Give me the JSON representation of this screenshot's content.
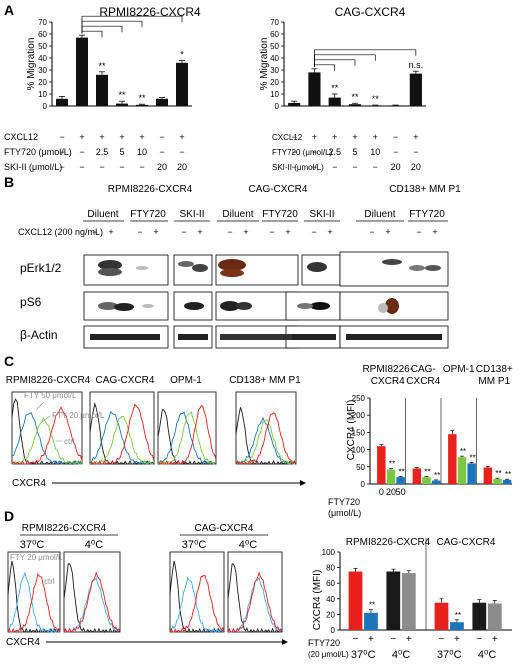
{
  "panel_letters": [
    "A",
    "B",
    "C",
    "D"
  ],
  "colors": {
    "black": "#1a1a1a",
    "red": "#e8211d",
    "green": "#7ac943",
    "blue": "#1b75bb",
    "gray": "#8c8c8c",
    "light_blue": "#3fa9f5"
  },
  "panel_a": {
    "charts": [
      {
        "title": "RPMI8226-CXCR4",
        "ylabel": "% Migration",
        "yticks": [
          "0",
          "10",
          "20",
          "30",
          "40",
          "50",
          "60",
          "70"
        ],
        "ylim": [
          0,
          70
        ],
        "values": [
          6,
          57,
          26,
          2,
          1,
          6,
          36
        ],
        "errors": [
          2,
          2,
          2.5,
          2,
          0.5,
          1,
          2
        ],
        "annotations": [
          "",
          "",
          "**",
          "**",
          "**",
          "",
          "*"
        ],
        "bracket_bars": [
          2,
          3,
          4,
          6
        ]
      },
      {
        "title": "CAG-CXCR4",
        "ylabel": "% Migration",
        "yticks": [
          "0",
          "10",
          "20",
          "30",
          "40",
          "50",
          "60",
          "70"
        ],
        "ylim": [
          0,
          70
        ],
        "values": [
          2.5,
          28,
          7,
          1.5,
          0.5,
          0.5,
          27
        ],
        "errors": [
          1.5,
          3,
          3,
          0.8,
          0.3,
          0.3,
          2
        ],
        "annotations": [
          "",
          "",
          "**",
          "**",
          "**",
          "",
          "n.s."
        ],
        "bracket_bars": [
          2,
          3,
          4,
          6
        ]
      }
    ],
    "conditions": {
      "left": {
        "labels": [
          "CXCL12",
          "FTY720 (μmol/L)",
          "SKI-II (μmol/L)"
        ]
      },
      "right": {
        "labels": [
          "CXCL12",
          "FTY720 (μmol/L)",
          "SKI-II (μmol/L)"
        ]
      },
      "rows": [
        [
          "−",
          "+",
          "+",
          "+",
          "+",
          "−",
          "+"
        ],
        [
          "−",
          "−",
          "2.5",
          "5",
          "10",
          "−",
          "−"
        ],
        [
          "−",
          "−",
          "−",
          "−",
          "−",
          "20",
          "20"
        ]
      ]
    }
  },
  "panel_b": {
    "groups": [
      {
        "title": "RPMI8226-CXCR4",
        "conditions": [
          "Diluent",
          "FTY720",
          "SKI-II"
        ]
      },
      {
        "title": "CAG-CXCR4",
        "conditions": [
          "Diluent",
          "FTY720",
          "SKI-II"
        ]
      },
      {
        "title": "CD138+ MM P1",
        "conditions": [
          "Diluent",
          "FTY720"
        ]
      }
    ],
    "cxcl12_label": "CXCL12 (200 ng/mL)",
    "pm": [
      "−",
      "+"
    ],
    "blots": [
      "pErk1/2",
      "pS6",
      "β-Actin"
    ]
  },
  "panel_c": {
    "histograms": [
      "RPMI8226-CXCR4",
      "CAG-CXCR4",
      "OPM-1",
      "CD138+ MM P1"
    ],
    "hist_labels": {
      "fty50": "FTY 50 μmol/L",
      "fty20": "FTY 20 μmol/L",
      "ctrl": "ctrl"
    },
    "xaxis_label": "CXCR4",
    "bar_chart": {
      "type": "bar",
      "groups": [
        {
          "title_lines": [
            "RPMI8226-",
            "CXCR4"
          ],
          "values": [
            110,
            42,
            20
          ],
          "errors": [
            5,
            3,
            2
          ],
          "stars": [
            "",
            "**",
            "**"
          ]
        },
        {
          "title_lines": [
            "CAG-",
            "CXCR4"
          ],
          "values": [
            45,
            20,
            10
          ],
          "errors": [
            3,
            2,
            2
          ],
          "stars": [
            "",
            "**",
            "**"
          ]
        },
        {
          "title_lines": [
            "OPM-1"
          ],
          "values": [
            145,
            78,
            60
          ],
          "errors": [
            10,
            3,
            3
          ],
          "stars": [
            "",
            "**",
            "**"
          ]
        },
        {
          "title_lines": [
            "CD138+",
            "MM P1"
          ],
          "values": [
            48,
            15,
            12
          ],
          "errors": [
            3,
            2,
            2
          ],
          "stars": [
            "",
            "**",
            "**"
          ]
        }
      ],
      "xticks": [
        "0",
        "20",
        "50"
      ],
      "xlabel": "FTY720",
      "xlabel_unit": "(μmol/L)",
      "ylabel": "CXCR4 (MFI)",
      "yticks": [
        "0",
        "50",
        "100",
        "150",
        "200",
        "250"
      ],
      "ylim": [
        0,
        250
      ]
    }
  },
  "panel_d": {
    "groups": [
      "RPMI8226-CXCR4",
      "CAG-CXCR4"
    ],
    "temps": [
      "37⁰C",
      "4⁰C",
      "37⁰C",
      "4⁰C"
    ],
    "hist_labels": {
      "fty20": "FTY 20 μmol/L",
      "ctrl": "ctrl"
    },
    "xaxis_label": "CXCR4",
    "bar_chart": {
      "type": "bar",
      "groups": [
        {
          "title": "RPMI8226-CXCR4",
          "values": [
            75,
            22,
            75,
            73
          ],
          "errors": [
            4,
            4,
            3,
            3
          ],
          "stars": [
            "",
            "**",
            "",
            ""
          ]
        },
        {
          "title": "CAG-CXCR4",
          "values": [
            35,
            10,
            35,
            34
          ],
          "errors": [
            5,
            3,
            4,
            4
          ],
          "stars": [
            "",
            "**",
            "",
            ""
          ]
        }
      ],
      "ylabel": "CXCR4 (MFI)",
      "yticks": [
        "0",
        "20",
        "40",
        "60",
        "80",
        "100"
      ],
      "ylim": [
        0,
        100
      ],
      "pm": [
        "−",
        "+",
        "−",
        "+",
        "−",
        "+",
        "−",
        "+"
      ],
      "fty_label": "FTY720",
      "fty_unit": "(20 μmol/L)",
      "temps": [
        "37⁰C",
        "4⁰C",
        "37⁰C",
        "4⁰C"
      ]
    }
  },
  "chart_data": [
    {
      "type": "bar",
      "title": "RPMI8226-CXCR4",
      "ylabel": "% Migration",
      "ylim": [
        0,
        70
      ],
      "categories": [
        "1",
        "2",
        "3",
        "4",
        "5",
        "6",
        "7"
      ],
      "values": [
        6,
        57,
        26,
        2,
        1,
        6,
        36
      ]
    },
    {
      "type": "bar",
      "title": "CAG-CXCR4",
      "ylabel": "% Migration",
      "ylim": [
        0,
        70
      ],
      "categories": [
        "1",
        "2",
        "3",
        "4",
        "5",
        "6",
        "7"
      ],
      "values": [
        2.5,
        28,
        7,
        1.5,
        0.5,
        0.5,
        27
      ]
    },
    {
      "type": "bar",
      "ylabel": "CXCR4 (MFI)",
      "xlabel": "FTY720 (μmol/L)",
      "ylim": [
        0,
        250
      ],
      "categories": [
        "RPMI8226-CXCR4",
        "CAG-CXCR4",
        "OPM-1",
        "CD138+ MM P1"
      ],
      "series": [
        {
          "name": "0",
          "values": [
            110,
            45,
            145,
            48
          ]
        },
        {
          "name": "20",
          "values": [
            42,
            20,
            78,
            15
          ]
        },
        {
          "name": "50",
          "values": [
            20,
            10,
            60,
            12
          ]
        }
      ]
    },
    {
      "type": "bar",
      "ylabel": "CXCR4 (MFI)",
      "ylim": [
        0,
        100
      ],
      "categories": [
        "RPMI8226-CXCR4 37⁰C −",
        "RPMI8226-CXCR4 37⁰C +",
        "RPMI8226-CXCR4 4⁰C −",
        "RPMI8226-CXCR4 4⁰C +",
        "CAG-CXCR4 37⁰C −",
        "CAG-CXCR4 37⁰C +",
        "CAG-CXCR4 4⁰C −",
        "CAG-CXCR4 4⁰C +"
      ],
      "values": [
        75,
        22,
        75,
        73,
        35,
        10,
        35,
        34
      ]
    }
  ]
}
